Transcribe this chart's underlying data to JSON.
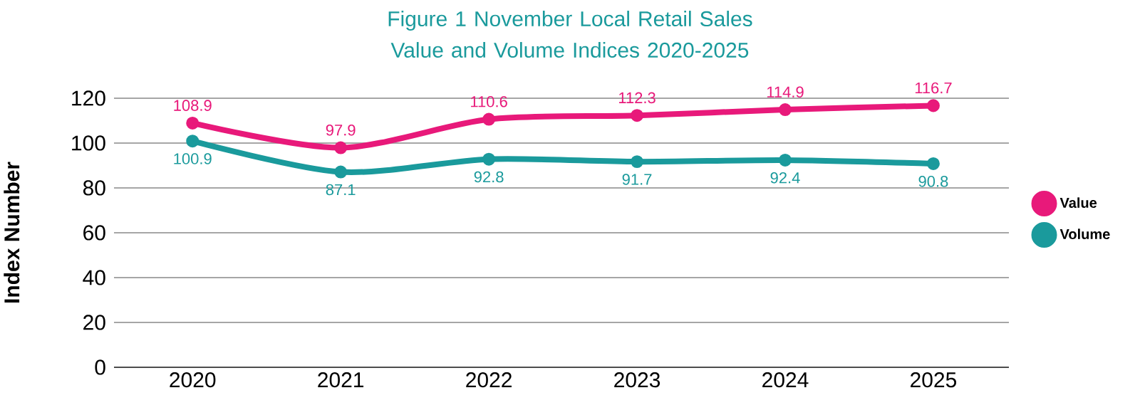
{
  "chart_data": {
    "type": "line",
    "title": "Figure 1 November Local Retail Sales Value and Volume Indices 2020-2025",
    "ylabel": "Index Number",
    "categories": [
      "2020",
      "2021",
      "2022",
      "2023",
      "2024",
      "2025"
    ],
    "series": [
      {
        "name": "Value",
        "color": "#e8197a",
        "values": [
          108.9,
          97.9,
          110.6,
          112.3,
          114.9,
          116.7
        ]
      },
      {
        "name": "Volume",
        "color": "#1a9a9c",
        "values": [
          100.9,
          87.1,
          92.8,
          91.7,
          92.4,
          90.8
        ]
      }
    ],
    "ylim": [
      0,
      120
    ],
    "yticks": [
      0,
      20,
      40,
      60,
      80,
      100,
      120
    ],
    "grid": "y",
    "legend": "right",
    "marker": "circle",
    "line_style": "solid",
    "data_labels": true
  }
}
